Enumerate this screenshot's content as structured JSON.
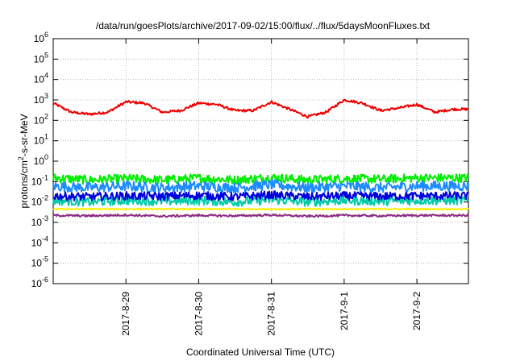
{
  "chart_data": {
    "type": "line",
    "title": "/data/run/goesPlots/archive/2017-09-02/15:00/flux/../flux/5daysMoonFluxes.txt",
    "xlabel": "Coordinated Universal Time (UTC)",
    "ylabel": {
      "prefix": "protons/cm",
      "sup": "2",
      "suffix": "-s-sr-MeV"
    },
    "yscale": "log",
    "ylim": [
      1e-06,
      1000000.0
    ],
    "xlim": [
      "2017-08-28T00:00",
      "2017-09-02T17:00"
    ],
    "grid": true,
    "y_ticks": [
      {
        "value": 1e-06,
        "label_base": "10",
        "label_exp": "-6"
      },
      {
        "value": 1e-05,
        "label_base": "10",
        "label_exp": "-5"
      },
      {
        "value": 0.0001,
        "label_base": "10",
        "label_exp": "-4"
      },
      {
        "value": 0.001,
        "label_base": "10",
        "label_exp": "-3"
      },
      {
        "value": 0.01,
        "label_base": "10",
        "label_exp": "-2"
      },
      {
        "value": 0.1,
        "label_base": "10",
        "label_exp": "-1"
      },
      {
        "value": 1.0,
        "label_base": "10",
        "label_exp": "0"
      },
      {
        "value": 10.0,
        "label_base": "10",
        "label_exp": "1"
      },
      {
        "value": 100.0,
        "label_base": "10",
        "label_exp": "2"
      },
      {
        "value": 1000.0,
        "label_base": "10",
        "label_exp": "3"
      },
      {
        "value": 10000.0,
        "label_base": "10",
        "label_exp": "4"
      },
      {
        "value": 100000.0,
        "label_base": "10",
        "label_exp": "5"
      },
      {
        "value": 1000000.0,
        "label_base": "10",
        "label_exp": "6"
      }
    ],
    "x_ticks": [
      {
        "value": "2017-08-29T00:00",
        "label": "2017-8-29"
      },
      {
        "value": "2017-08-30T00:00",
        "label": "2017-8-30"
      },
      {
        "value": "2017-08-31T00:00",
        "label": "2017-8-31"
      },
      {
        "value": "2017-09-01T00:00",
        "label": "2017-9-1"
      },
      {
        "value": "2017-09-02T00:00",
        "label": "2017-9-2"
      }
    ],
    "series": [
      {
        "color": "#ee0000",
        "x": [
          "2017-08-28T00:00",
          "2017-08-28T06:00",
          "2017-08-28T12:00",
          "2017-08-28T18:00",
          "2017-08-29T00:00",
          "2017-08-29T06:00",
          "2017-08-29T12:00",
          "2017-08-29T18:00",
          "2017-08-30T00:00",
          "2017-08-30T06:00",
          "2017-08-30T12:00",
          "2017-08-30T18:00",
          "2017-08-31T00:00",
          "2017-08-31T06:00",
          "2017-08-31T12:00",
          "2017-08-31T18:00",
          "2017-09-01T00:00",
          "2017-09-01T06:00",
          "2017-09-01T12:00",
          "2017-09-01T18:00",
          "2017-09-02T00:00",
          "2017-09-02T06:00",
          "2017-09-02T12:00",
          "2017-09-02T17:00"
        ],
        "y": [
          700,
          250,
          200,
          250,
          800,
          700,
          250,
          300,
          700,
          600,
          300,
          300,
          800,
          350,
          150,
          250,
          1000,
          700,
          300,
          400,
          600,
          250,
          350,
          350
        ]
      },
      {
        "color": "#00ee00",
        "x": [
          "2017-08-28T00:00",
          "2017-08-28T12:00",
          "2017-08-29T00:00",
          "2017-08-29T12:00",
          "2017-08-30T00:00",
          "2017-08-30T12:00",
          "2017-08-31T00:00",
          "2017-08-31T12:00",
          "2017-09-01T00:00",
          "2017-09-01T12:00",
          "2017-09-02T00:00",
          "2017-09-02T17:00"
        ],
        "y": [
          0.15,
          0.12,
          0.14,
          0.12,
          0.15,
          0.12,
          0.16,
          0.12,
          0.14,
          0.13,
          0.15,
          0.15
        ]
      },
      {
        "color": "#1e8cff",
        "x": [
          "2017-08-28T00:00",
          "2017-08-28T12:00",
          "2017-08-29T00:00",
          "2017-08-29T12:00",
          "2017-08-30T00:00",
          "2017-08-30T12:00",
          "2017-08-31T00:00",
          "2017-08-31T12:00",
          "2017-09-01T00:00",
          "2017-09-01T12:00",
          "2017-09-02T00:00",
          "2017-09-02T17:00"
        ],
        "y": [
          0.06,
          0.05,
          0.06,
          0.05,
          0.06,
          0.05,
          0.07,
          0.05,
          0.06,
          0.05,
          0.06,
          0.06
        ]
      },
      {
        "color": "#00ccaa",
        "x": [
          "2017-08-28T00:00",
          "2017-08-28T12:00",
          "2017-08-29T00:00",
          "2017-08-29T12:00",
          "2017-08-30T00:00",
          "2017-08-30T12:00",
          "2017-08-31T00:00",
          "2017-08-31T12:00",
          "2017-09-01T00:00",
          "2017-09-01T12:00",
          "2017-09-02T00:00",
          "2017-09-02T17:00"
        ],
        "y": [
          0.012,
          0.01,
          0.012,
          0.011,
          0.012,
          0.01,
          0.013,
          0.01,
          0.012,
          0.011,
          0.012,
          0.012
        ]
      },
      {
        "color": "#0000dd",
        "x": [
          "2017-08-28T00:00",
          "2017-08-28T12:00",
          "2017-08-29T00:00",
          "2017-08-29T12:00",
          "2017-08-30T00:00",
          "2017-08-30T12:00",
          "2017-08-31T00:00",
          "2017-08-31T12:00",
          "2017-09-01T00:00",
          "2017-09-01T12:00",
          "2017-09-02T00:00",
          "2017-09-02T17:00"
        ],
        "y": [
          0.02,
          0.018,
          0.02,
          0.019,
          0.021,
          0.018,
          0.022,
          0.018,
          0.02,
          0.019,
          0.02,
          0.02
        ]
      },
      {
        "color": "#ffee00",
        "x": [
          "2017-08-28T00:00",
          "2017-08-29T00:00",
          "2017-08-30T00:00",
          "2017-08-31T00:00",
          "2017-09-01T00:00",
          "2017-09-02T00:00",
          "2017-09-02T17:00"
        ],
        "y": [
          0.0045,
          0.0045,
          0.0045,
          0.0045,
          0.0045,
          0.0045,
          0.0045
        ]
      },
      {
        "color": "#8b2c84",
        "x": [
          "2017-08-28T00:00",
          "2017-08-28T12:00",
          "2017-08-29T00:00",
          "2017-08-29T12:00",
          "2017-08-30T00:00",
          "2017-08-30T12:00",
          "2017-08-31T00:00",
          "2017-08-31T12:00",
          "2017-09-01T00:00",
          "2017-09-01T12:00",
          "2017-09-02T00:00",
          "2017-09-02T17:00"
        ],
        "y": [
          0.0022,
          0.0021,
          0.0023,
          0.002,
          0.0022,
          0.0021,
          0.0023,
          0.002,
          0.0022,
          0.0021,
          0.0022,
          0.0022
        ]
      }
    ]
  }
}
